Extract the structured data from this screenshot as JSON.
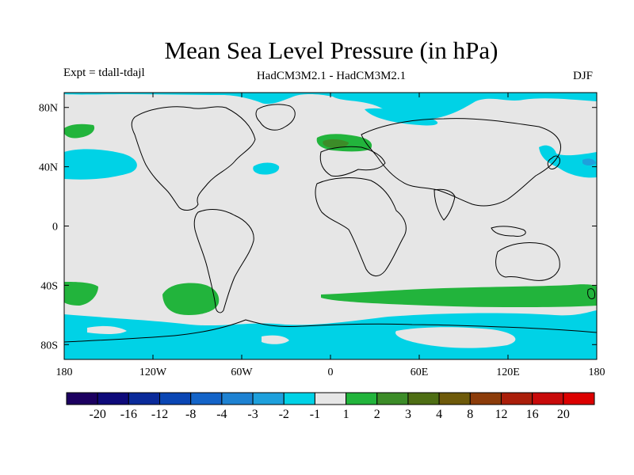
{
  "figure": {
    "title": "Mean Sea Level Pressure (in hPa)",
    "left_label": "Expt = tdall-tdajl",
    "center_label": "HadCM3M2.1 - HadCM3M2.1",
    "right_label": "DJF"
  },
  "map": {
    "projection": "cylindrical-equidistant",
    "lon_range": [
      -180,
      180
    ],
    "lat_range": [
      -90,
      90
    ],
    "x_tick_labels": [
      "180",
      "120W",
      "60W",
      "0",
      "60E",
      "120E",
      "180"
    ],
    "y_tick_labels": [
      "80N",
      "40N",
      "0",
      "40S",
      "80S"
    ],
    "background_color": "#e6e6e6",
    "coastline_color": "#000000"
  },
  "colorbar": {
    "levels": [
      "-20",
      "-16",
      "-12",
      "-8",
      "-4",
      "-3",
      "-2",
      "-1",
      "1",
      "2",
      "3",
      "4",
      "8",
      "12",
      "16",
      "20"
    ],
    "colors": [
      "#1c0060",
      "#0e0a7a",
      "#0a2a9a",
      "#0a46b4",
      "#1464c8",
      "#1e82d2",
      "#1ea0dc",
      "#00d2e6",
      "#e6e6e6",
      "#22b43c",
      "#3c8c28",
      "#4e6e14",
      "#6e5a0a",
      "#8c3c0a",
      "#aa1e0a",
      "#c80a0a",
      "#dc0000"
    ]
  }
}
